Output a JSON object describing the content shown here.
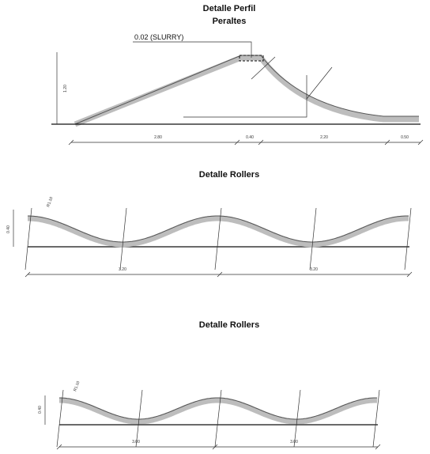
{
  "sections": [
    {
      "title": "Detalle Perfil",
      "subtitle": "Peraltes",
      "note": "0.02 (SLURRY)",
      "height_label": "1.20",
      "dims": [
        "2.80",
        "0.40",
        "2.20",
        "0.50"
      ]
    },
    {
      "title": "Detalle Rollers",
      "height_label": "0.40",
      "dims": [
        "3.20",
        "3.20"
      ],
      "radius_label": "R1.10"
    },
    {
      "title": "Detalle Rollers",
      "height_label": "0.40",
      "dims": [
        "3.00",
        "3.00"
      ],
      "radius_label": "R1.10"
    }
  ]
}
